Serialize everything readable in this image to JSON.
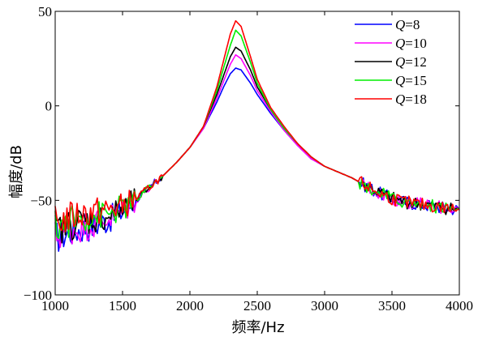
{
  "chart_data": {
    "type": "line",
    "title": "",
    "xlabel": "频率/Hz",
    "ylabel": "幅度/dB",
    "xlim": [
      1000,
      4000
    ],
    "ylim": [
      -100,
      50
    ],
    "xticks": [
      1000,
      1500,
      2000,
      2500,
      3000,
      3500,
      4000
    ],
    "yticks": [
      -100,
      -50,
      0,
      50
    ],
    "grid": false,
    "legend_position": "top-right",
    "series": [
      {
        "name": "Q=8",
        "legend_var": "Q",
        "legend_value": "=8",
        "color": "#0000ff",
        "x": [
          1000,
          1100,
          1200,
          1300,
          1400,
          1500,
          1600,
          1700,
          1800,
          1900,
          2000,
          2100,
          2200,
          2250,
          2300,
          2340,
          2380,
          2450,
          2500,
          2600,
          2700,
          2800,
          2900,
          3000,
          3100,
          3200,
          3300,
          3400,
          3500,
          3600,
          3700,
          3800,
          3900,
          4000
        ],
        "y": [
          -70,
          -67,
          -65,
          -63,
          -60,
          -56,
          -50,
          -43,
          -37,
          -30,
          -22,
          -12,
          2,
          10,
          17,
          20,
          19,
          12,
          6,
          -4,
          -13,
          -21,
          -28,
          -32,
          -35,
          -38,
          -42,
          -46,
          -49,
          -51,
          -52,
          -53,
          -54,
          -55
        ]
      },
      {
        "name": "Q=10",
        "legend_var": "Q",
        "legend_value": "=10",
        "color": "#ff00ff",
        "x": [
          1000,
          1100,
          1200,
          1300,
          1400,
          1500,
          1600,
          1700,
          1800,
          1900,
          2000,
          2100,
          2200,
          2250,
          2300,
          2340,
          2380,
          2450,
          2500,
          2600,
          2700,
          2800,
          2900,
          3000,
          3100,
          3200,
          3300,
          3400,
          3500,
          3600,
          3700,
          3800,
          3900,
          4000
        ],
        "y": [
          -69,
          -66,
          -64,
          -62,
          -59,
          -56,
          -50,
          -43,
          -37,
          -30,
          -22,
          -12,
          4,
          13,
          22,
          27,
          25,
          16,
          8,
          -3,
          -13,
          -21,
          -28,
          -32,
          -35,
          -38,
          -42,
          -46,
          -49,
          -51,
          -52,
          -53,
          -54,
          -55
        ]
      },
      {
        "name": "Q=12",
        "legend_var": "Q",
        "legend_value": "=12",
        "color": "#000000",
        "x": [
          1000,
          1100,
          1200,
          1300,
          1400,
          1500,
          1600,
          1700,
          1800,
          1900,
          2000,
          2100,
          2200,
          2250,
          2300,
          2340,
          2380,
          2450,
          2500,
          2600,
          2700,
          2800,
          2900,
          3000,
          3100,
          3200,
          3300,
          3400,
          3500,
          3600,
          3700,
          3800,
          3900,
          4000
        ],
        "y": [
          -66,
          -63,
          -61,
          -60,
          -58,
          -55,
          -50,
          -43,
          -37,
          -30,
          -22,
          -11,
          6,
          16,
          26,
          31,
          29,
          19,
          10,
          -2,
          -12,
          -20,
          -27,
          -32,
          -35,
          -38,
          -42,
          -46,
          -49,
          -51,
          -52,
          -53,
          -54,
          -55
        ]
      },
      {
        "name": "Q=15",
        "legend_var": "Q",
        "legend_value": "=15",
        "color": "#00ee00",
        "x": [
          1000,
          1100,
          1200,
          1300,
          1400,
          1500,
          1600,
          1700,
          1800,
          1900,
          2000,
          2100,
          2200,
          2250,
          2300,
          2340,
          2380,
          2450,
          2500,
          2600,
          2700,
          2800,
          2900,
          3000,
          3100,
          3200,
          3300,
          3400,
          3500,
          3600,
          3700,
          3800,
          3900,
          4000
        ],
        "y": [
          -64,
          -61,
          -59,
          -58,
          -57,
          -54,
          -50,
          -43,
          -37,
          -30,
          -22,
          -11,
          8,
          20,
          32,
          40,
          37,
          23,
          12,
          -2,
          -12,
          -20,
          -27,
          -32,
          -35,
          -38,
          -42,
          -46,
          -49,
          -51,
          -52,
          -53,
          -54,
          -55
        ]
      },
      {
        "name": "Q=18",
        "legend_var": "Q",
        "legend_value": "=18",
        "color": "#ff0000",
        "x": [
          1000,
          1100,
          1200,
          1300,
          1400,
          1500,
          1600,
          1700,
          1800,
          1900,
          2000,
          2100,
          2200,
          2250,
          2300,
          2340,
          2380,
          2450,
          2500,
          2600,
          2700,
          2800,
          2900,
          3000,
          3100,
          3200,
          3300,
          3400,
          3500,
          3600,
          3700,
          3800,
          3900,
          4000
        ],
        "y": [
          -62,
          -59,
          -57,
          -56,
          -55,
          -53,
          -49,
          -43,
          -37,
          -30,
          -22,
          -11,
          10,
          24,
          38,
          45,
          42,
          26,
          14,
          -1,
          -11,
          -20,
          -27,
          -32,
          -35,
          -38,
          -42,
          -46,
          -49,
          -51,
          -52,
          -53,
          -54,
          -55
        ]
      }
    ]
  }
}
